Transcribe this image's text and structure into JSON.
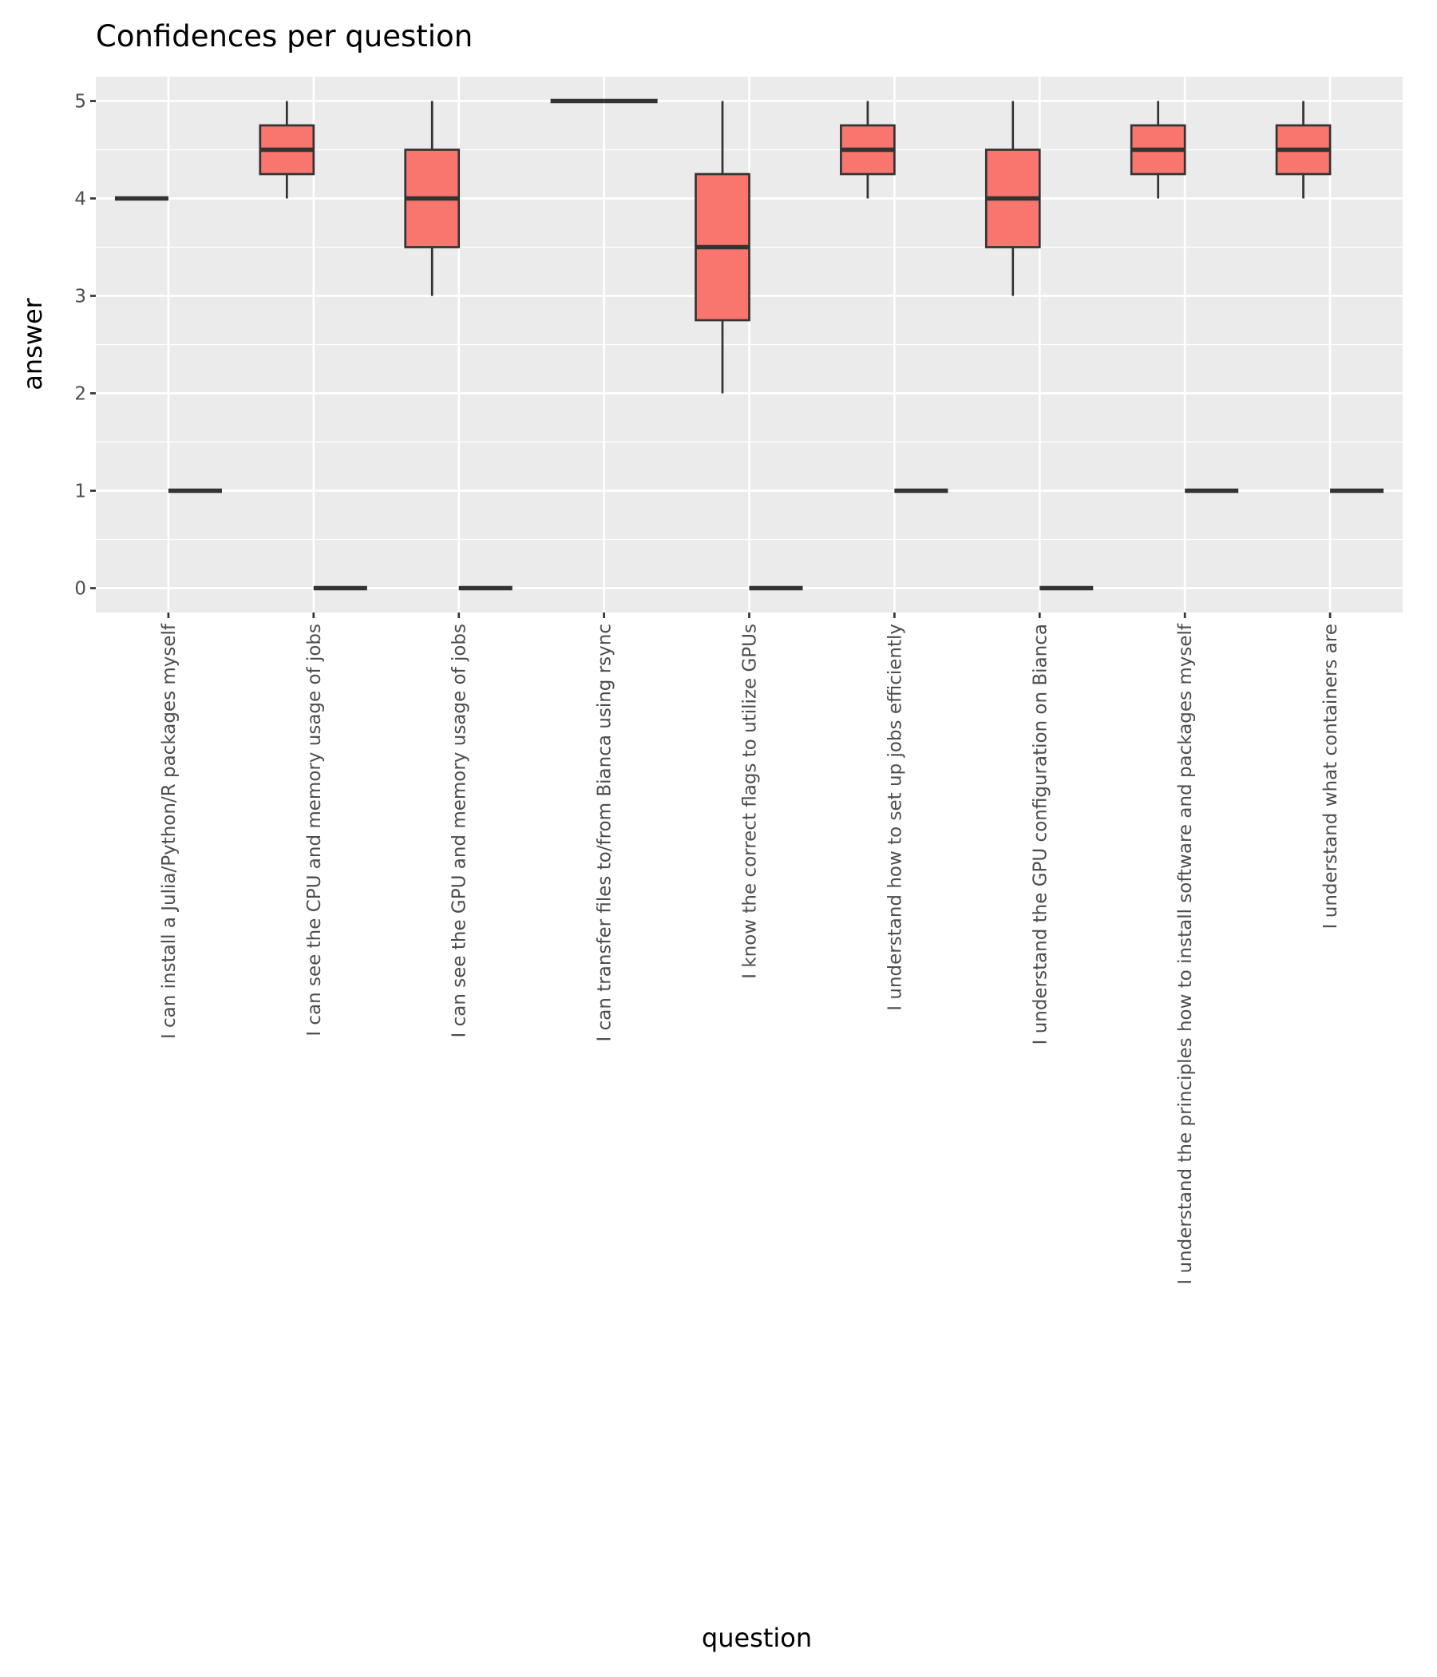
{
  "chart_data": {
    "type": "boxplot",
    "title": "Confidences per question",
    "xlabel": "question",
    "ylabel": "answer",
    "ylim": [
      -0.25,
      5.25
    ],
    "yticks": [
      0,
      1,
      2,
      3,
      4,
      5
    ],
    "grid": true,
    "legend": "none",
    "box_fill": "#F8766D",
    "categories": [
      "I can install a Julia/Python/R packages myself",
      "I can see the CPU and memory usage of jobs",
      "I can see the GPU and memory usage of jobs",
      "I can transfer files to/from Bianca using rsync",
      "I know the correct flags to utilize GPUs",
      "I understand how to set up jobs efficiently",
      "I understand the GPU configuration on Bianca",
      "I understand the principles how to install software and packages myself",
      "I understand what containers are"
    ],
    "series": [
      {
        "boxes": [
          {
            "min": 4,
            "q1": 4,
            "median": 4,
            "q3": 4,
            "max": 4
          },
          {
            "min": 4,
            "q1": 4.25,
            "median": 4.5,
            "q3": 4.75,
            "max": 5
          },
          {
            "min": 3,
            "q1": 3.5,
            "median": 4,
            "q3": 4.5,
            "max": 5
          },
          {
            "min": 5,
            "q1": 5,
            "median": 5,
            "q3": 5,
            "max": 5
          },
          {
            "min": 2,
            "q1": 2.75,
            "median": 3.5,
            "q3": 4.25,
            "max": 5
          },
          {
            "min": 4,
            "q1": 4.25,
            "median": 4.5,
            "q3": 4.75,
            "max": 5
          },
          {
            "min": 3,
            "q1": 3.5,
            "median": 4,
            "q3": 4.5,
            "max": 5
          },
          {
            "min": 4,
            "q1": 4.25,
            "median": 4.5,
            "q3": 4.75,
            "max": 5
          },
          {
            "min": 4,
            "q1": 4.25,
            "median": 4.5,
            "q3": 4.75,
            "max": 5
          }
        ]
      },
      {
        "boxes": [
          {
            "min": 1,
            "q1": 1,
            "median": 1,
            "q3": 1,
            "max": 1
          },
          {
            "min": 0,
            "q1": 0,
            "median": 0,
            "q3": 0,
            "max": 0
          },
          {
            "min": 0,
            "q1": 0,
            "median": 0,
            "q3": 0,
            "max": 0
          },
          {
            "min": 5,
            "q1": 5,
            "median": 5,
            "q3": 5,
            "max": 5
          },
          {
            "min": 0,
            "q1": 0,
            "median": 0,
            "q3": 0,
            "max": 0
          },
          {
            "min": 1,
            "q1": 1,
            "median": 1,
            "q3": 1,
            "max": 1
          },
          {
            "min": 0,
            "q1": 0,
            "median": 0,
            "q3": 0,
            "max": 0
          },
          {
            "min": 1,
            "q1": 1,
            "median": 1,
            "q3": 1,
            "max": 1
          },
          {
            "min": 1,
            "q1": 1,
            "median": 1,
            "q3": 1,
            "max": 1
          }
        ]
      }
    ]
  }
}
